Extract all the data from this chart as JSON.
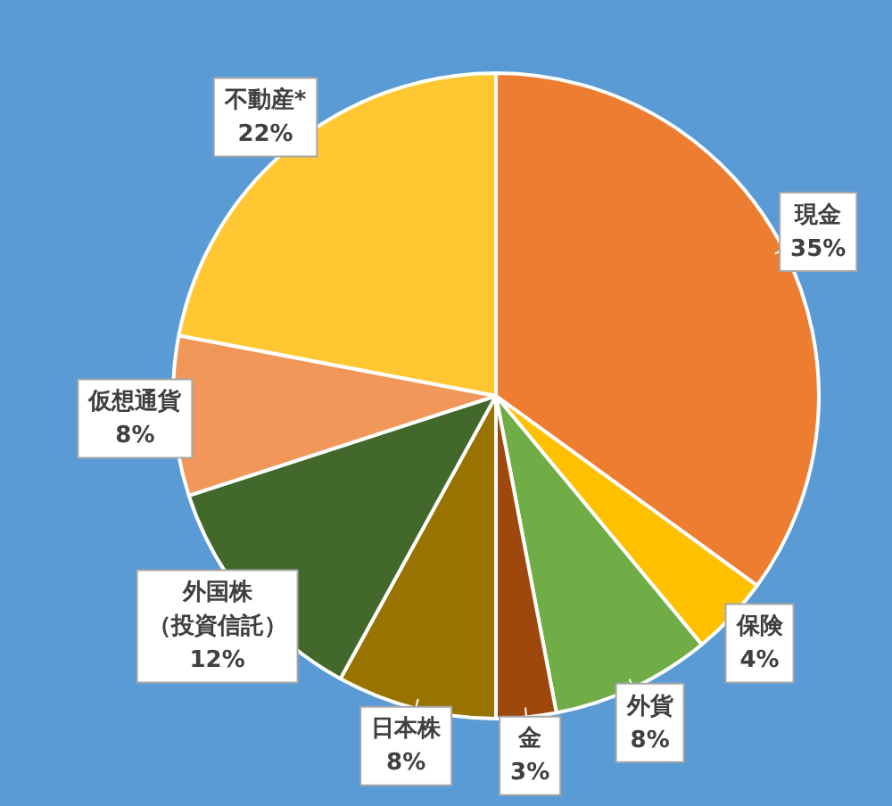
{
  "chart_data": {
    "type": "pie",
    "categories": [
      "現金",
      "保険",
      "外貨",
      "金",
      "日本株",
      "外国株（投資信託）",
      "仮想通貨",
      "不動産*"
    ],
    "values": [
      35,
      4,
      8,
      3,
      8,
      12,
      8,
      22
    ],
    "colors": [
      "#ed7d31",
      "#ffc000",
      "#70ad47",
      "#9e480e",
      "#997300",
      "#43682b",
      "#f1975a",
      "#ffc832"
    ],
    "value_labels": [
      "35%",
      "4%",
      "8%",
      "3%",
      "8%",
      "12%",
      "8%",
      "22%"
    ],
    "legend": false
  }
}
